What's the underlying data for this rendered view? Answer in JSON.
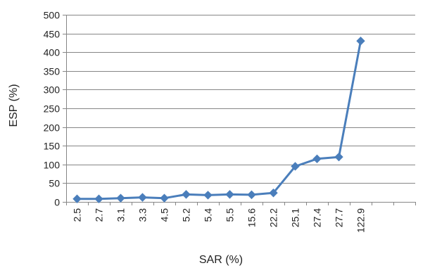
{
  "chart_data": {
    "type": "line",
    "title": "",
    "xlabel": "SAR (%)",
    "ylabel": "ESP (%)",
    "categories": [
      "2.5",
      "2.7",
      "3.1",
      "3.3",
      "4.5",
      "5.2",
      "5.4",
      "5.5",
      "15.6",
      "22.2",
      "25.1",
      "27.4",
      "27.7",
      "122.9"
    ],
    "series": [
      {
        "values": [
          8,
          8,
          10,
          12,
          10,
          20,
          18,
          20,
          19,
          24,
          95,
          115,
          120,
          430
        ]
      }
    ],
    "ylim": [
      0,
      500
    ],
    "yticks": [
      "0",
      "50",
      "100",
      "150",
      "200",
      "250",
      "300",
      "350",
      "400",
      "450",
      "500"
    ],
    "grid": true,
    "legend": "none",
    "colors": {
      "line": "#4a7ebb",
      "marker": "#4a7ebb",
      "grid": "#868686",
      "axis": "#868686"
    },
    "marker": "diamond-icon"
  }
}
